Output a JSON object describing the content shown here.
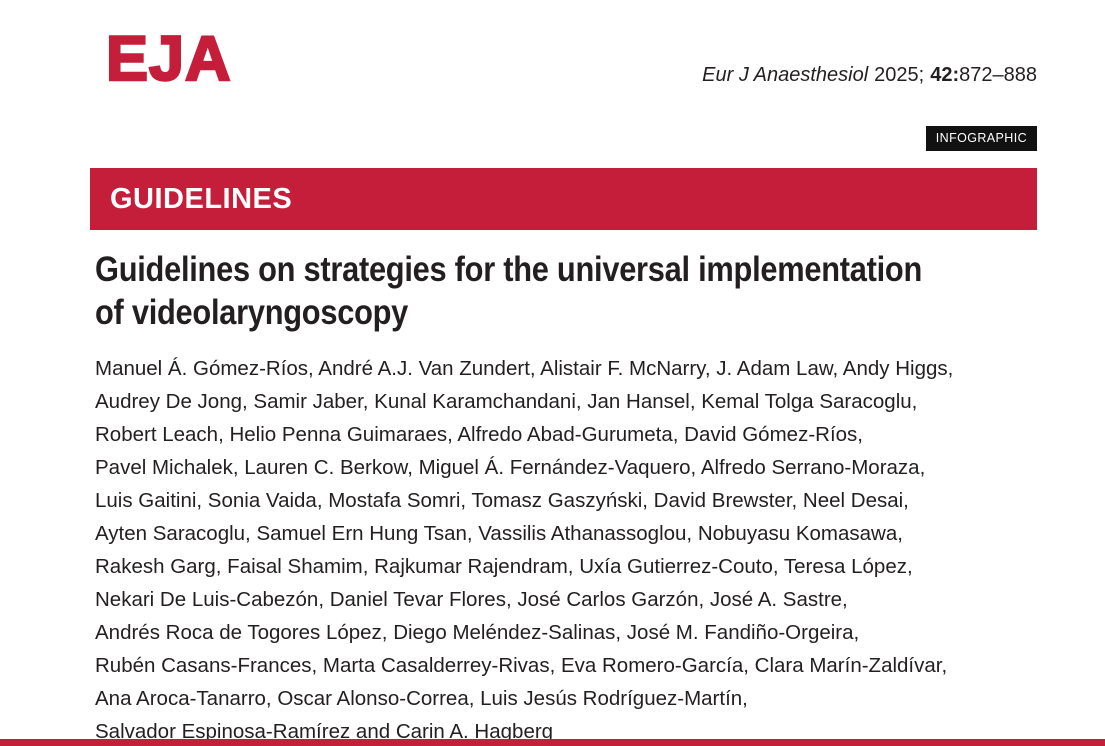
{
  "header": {
    "logo_text": "EJA",
    "citation": {
      "journal": "Eur J Anaesthesiol",
      "year": "2025;",
      "volume": "42:",
      "pages": "872–888"
    },
    "badge": "INFOGRAPHIC"
  },
  "section_banner": {
    "label": "GUIDELINES"
  },
  "article": {
    "title": "Guidelines on strategies for the universal implementation of videolaryngoscopy",
    "title_lines": [
      "Guidelines on strategies for the universal implementation",
      "of videolaryngoscopy"
    ],
    "authors_lines": [
      "Manuel Á. Gómez-Ríos, André A.J. Van Zundert, Alistair F. McNarry, J. Adam Law, Andy Higgs,",
      "Audrey De Jong, Samir Jaber, Kunal Karamchandani, Jan Hansel, Kemal Tolga Saracoglu,",
      "Robert Leach, Helio Penna Guimaraes, Alfredo Abad-Gurumeta, David Gómez-Ríos,",
      "Pavel Michalek, Lauren C. Berkow, Miguel Á. Fernández-Vaquero, Alfredo Serrano-Moraza,",
      "Luis Gaitini, Sonia Vaida, Mostafa Somri, Tomasz Gaszyński, David Brewster, Neel Desai,",
      "Ayten Saracoglu, Samuel Ern Hung Tsan, Vassilis Athanassoglou, Nobuyasu Komasawa,",
      "Rakesh Garg, Faisal Shamim, Rajkumar Rajendram, Uxía Gutierrez-Couto, Teresa López,",
      "Nekari De Luis-Cabezón, Daniel Tevar Flores, José Carlos Garzón, José A. Sastre,",
      "Andrés Roca de Togores López, Diego Meléndez-Salinas, José M. Fandiño-Orgeira,",
      "Rubén Casans-Frances, Marta Casalderrey-Rivas, Eva Romero-García, Clara Marín-Zaldívar,",
      "Ana Aroca-Tanarro, Oscar Alonso-Correa, Luis Jesús Rodríguez-Martín,",
      "Salvador Espinosa-Ramírez and Carin A. Hagberg"
    ]
  },
  "colors": {
    "brand_red": "#C51E3A",
    "badge_black": "#111111",
    "text_black": "#231F20"
  }
}
